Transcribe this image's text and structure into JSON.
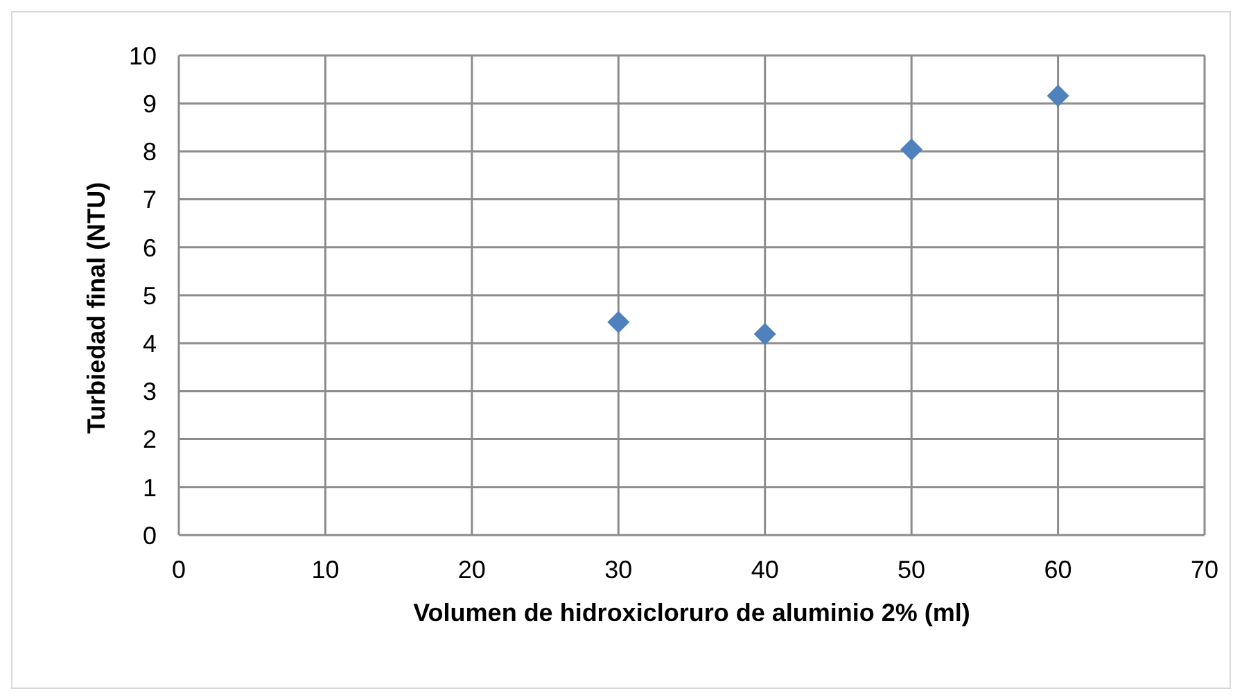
{
  "chart_data": {
    "type": "scatter",
    "xlabel": "Volumen de hidroxicloruro de aluminio 2%  (ml)",
    "ylabel": "Turbiedad final (NTU)",
    "x": [
      30,
      40,
      50,
      60
    ],
    "series": [
      {
        "color": "#4f81bd",
        "values": [
          4.44,
          4.19,
          8.04,
          9.16
        ]
      }
    ],
    "xlim": [
      0,
      70
    ],
    "xticks": [
      0,
      10,
      20,
      30,
      40,
      50,
      60,
      70
    ],
    "ylim": [
      0,
      10
    ],
    "yticks": [
      0,
      1,
      2,
      3,
      4,
      5,
      6,
      7,
      8,
      9,
      10
    ],
    "grid": true,
    "marker": "diamond",
    "legend": false
  }
}
